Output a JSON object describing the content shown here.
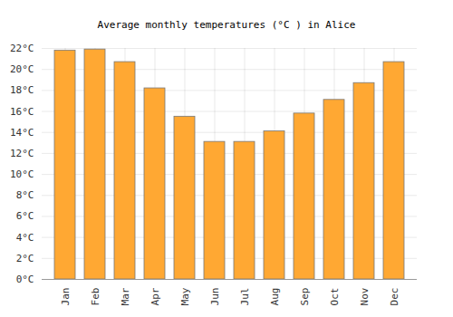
{
  "chart_data": {
    "type": "bar",
    "title": "Average monthly temperatures (°C ) in Alice",
    "categories": [
      "Jan",
      "Feb",
      "Mar",
      "Apr",
      "May",
      "Jun",
      "Jul",
      "Aug",
      "Sep",
      "Oct",
      "Nov",
      "Dec"
    ],
    "values": [
      21.8,
      21.9,
      20.7,
      18.2,
      15.5,
      13.1,
      13.1,
      14.1,
      15.8,
      17.1,
      18.7,
      20.7
    ],
    "color": "#ffa833",
    "ylim": [
      0,
      22
    ],
    "yticks": [
      {
        "value": 0,
        "label": "0°C"
      },
      {
        "value": 2,
        "label": "2°C"
      },
      {
        "value": 4,
        "label": "4°C"
      },
      {
        "value": 6,
        "label": "6°C"
      },
      {
        "value": 8,
        "label": "8°C"
      },
      {
        "value": 10,
        "label": "10°C"
      },
      {
        "value": 12,
        "label": "12°C"
      },
      {
        "value": 14,
        "label": "14°C"
      },
      {
        "value": 16,
        "label": "16°C"
      },
      {
        "value": 18,
        "label": "18°C"
      },
      {
        "value": 20,
        "label": "20°C"
      },
      {
        "value": 22,
        "label": "22°C"
      }
    ],
    "grid": true
  }
}
